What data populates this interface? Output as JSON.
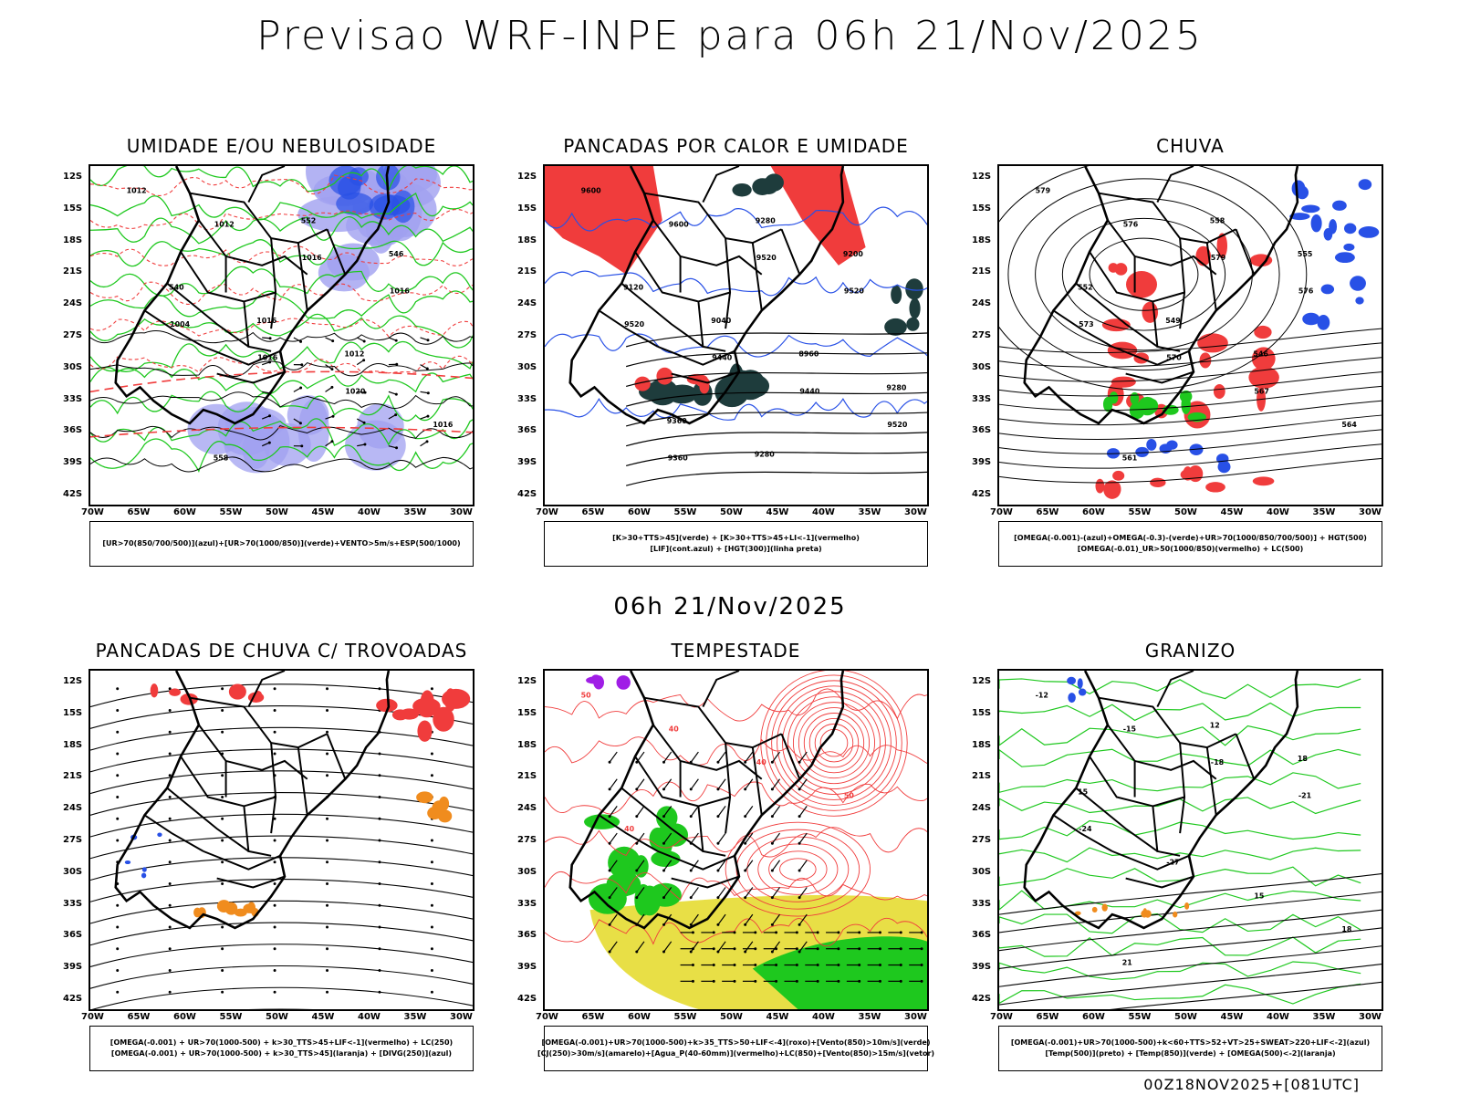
{
  "title": "Previsao WRF-INPE  para 06h 21/Nov/2025",
  "subtitle": "06h 21/Nov/2025",
  "footer": "00Z18NOV2025+[081UTC]",
  "lat_ticks": [
    "12S",
    "15S",
    "18S",
    "21S",
    "24S",
    "27S",
    "30S",
    "33S",
    "36S",
    "39S",
    "42S"
  ],
  "lon_ticks": [
    "70W",
    "65W",
    "60W",
    "55W",
    "50W",
    "45W",
    "40W",
    "35W",
    "30W"
  ],
  "panels": [
    {
      "title": "UMIDADE E/OU NEBULOSIDADE",
      "legend": [
        "[UR>70(850/700/500)](azul)+[UR>70(1000/850)](verde)+VENTO>5m/s+ESP(500/1000)"
      ],
      "contour_labels": [
        "1012",
        "1012",
        "1016",
        "1016",
        "1004",
        "1016",
        "1020",
        "1016",
        "558",
        "552",
        "546",
        "540",
        "1016",
        "1012"
      ]
    },
    {
      "title": "PANCADAS POR CALOR E UMIDADE",
      "legend": [
        "[K>30+TTS>45](verde) + [K>30+TTS>45+LI<-1](vermelho)",
        "[LIF](cont.azul) + [HGT(300)](linha preta)"
      ],
      "contour_labels": [
        "9600",
        "9600",
        "9520",
        "9520",
        "9520",
        "9440",
        "9440",
        "9520",
        "9360",
        "9280",
        "9200",
        "9120",
        "9040",
        "8960",
        "9280",
        "9360",
        "9280"
      ]
    },
    {
      "title": "CHUVA",
      "legend": [
        "[OMEGA(-0.001)-(azul)+OMEGA(-0.3)-(verde)+UR>70(1000/850/700/500)] + HGT(500)",
        "[OMEGA(-0.01)_UR>50(1000/850)(vermelho) + LC(500)"
      ],
      "contour_labels": [
        "579",
        "576",
        "579",
        "576",
        "573",
        "570",
        "567",
        "564",
        "561",
        "558",
        "555",
        "552",
        "549",
        "546"
      ]
    },
    {
      "title": "PANCADAS DE CHUVA C/ TROVOADAS",
      "legend": [
        "[OMEGA(-0.001) + UR>70(1000-500) + k>30_TTS>45+LIF<-1](vermelho) + LC(250)",
        "[OMEGA(-0.001) + UR>70(1000-500) + k>30_TTS>45](laranja) + [DIVG(250)](azul)"
      ],
      "contour_labels": []
    },
    {
      "title": "TEMPESTADE",
      "legend": [
        "[OMEGA(-0.001)+UR>70(1000-500)+k>35_TTS>50+LIF<-4](roxo)+[Vento(850)>10m/s](verde)",
        "[CJ(250)>30m/s](amarelo)+[Agua_P(40-60mm)](vermelho)+LC(850)+[Vento(850)>15m/s](vetor)"
      ],
      "contour_labels": [
        "50",
        "40",
        "40",
        "50",
        "40"
      ]
    },
    {
      "title": "GRANIZO",
      "legend": [
        "[OMEGA(-0.001)+UR>70(1000-500)+k<60+TTS>52+VT>25+SWEAT>220+LIF<-2](azul)",
        "[Temp(500)](preto) + [Temp(850)](verde) + [OMEGA(500)<-2](laranja)"
      ],
      "contour_labels": [
        "-12",
        "-15",
        "-18",
        "-21",
        "-24",
        "-27",
        "15",
        "18",
        "21",
        "12",
        "18",
        "15"
      ]
    }
  ],
  "colors": {
    "red": "#f03c3c",
    "green": "#1ec81e",
    "blue": "#2850e6",
    "lavender": "#a0a0f0",
    "dark_teal": "#1e3c3c",
    "orange": "#f08c1e",
    "yellow": "#e6dc32",
    "purple": "#a01ee6"
  }
}
